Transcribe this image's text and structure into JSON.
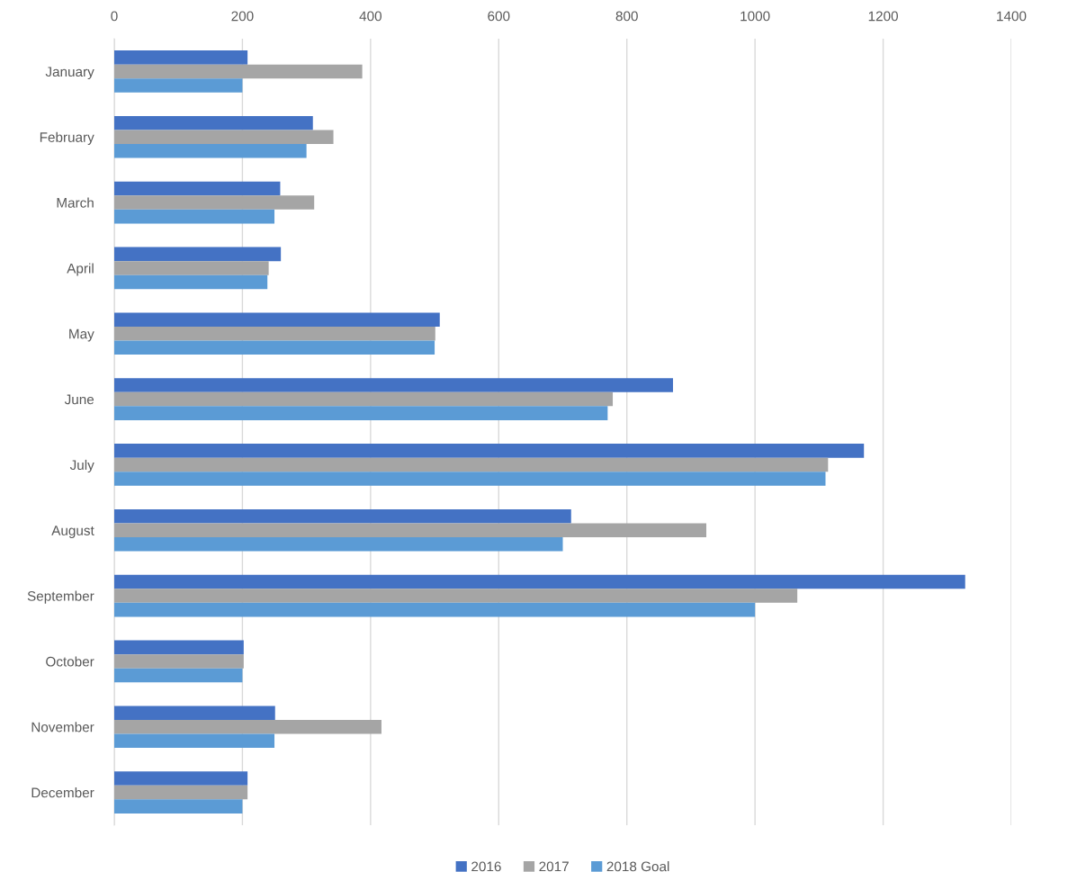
{
  "chart_data": {
    "type": "bar",
    "orientation": "horizontal",
    "categories": [
      "January",
      "February",
      "March",
      "April",
      "May",
      "June",
      "July",
      "August",
      "September",
      "October",
      "November",
      "December"
    ],
    "series": [
      {
        "name": "2016",
        "color": "#4472c4",
        "values": [
          208,
          310,
          259,
          260,
          508,
          872,
          1170,
          713,
          1328,
          202,
          251,
          208
        ]
      },
      {
        "name": "2017",
        "color": "#a5a5a5",
        "values": [
          387,
          342,
          312,
          241,
          501,
          778,
          1114,
          924,
          1066,
          202,
          417,
          208
        ]
      },
      {
        "name": "2018 Goal",
        "color": "#5b9bd5",
        "values": [
          200,
          300,
          250,
          239,
          500,
          770,
          1110,
          700,
          1000,
          200,
          250,
          200
        ]
      }
    ],
    "xlim": [
      0,
      1400
    ],
    "xticks": [
      0,
      200,
      400,
      600,
      800,
      1000,
      1200,
      1400
    ],
    "grid": "x",
    "legend": "bottom"
  }
}
